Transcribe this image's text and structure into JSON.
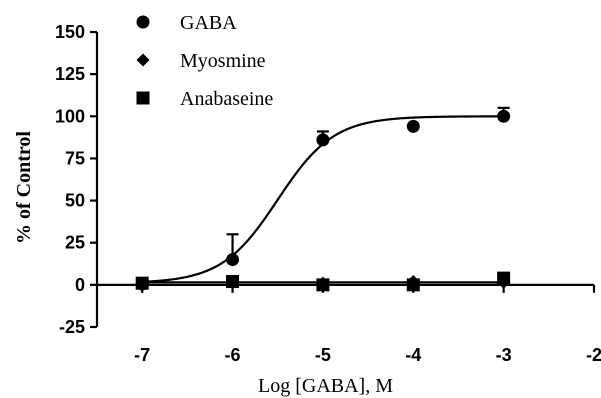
{
  "chart_data": {
    "type": "scatter",
    "xlabel": "Log [GABA], M",
    "ylabel": "% of Control",
    "xlim": [
      -7.5,
      -2
    ],
    "ylim": [
      -25,
      150
    ],
    "xticks": [
      "-7",
      "-6",
      "-5",
      "-4",
      "-3",
      "-2"
    ],
    "xtick_values": [
      -7,
      -6,
      -5,
      -4,
      -3,
      -2
    ],
    "yticks": [
      "-25",
      "0",
      "25",
      "50",
      "75",
      "100",
      "125",
      "150"
    ],
    "ytick_values": [
      -25,
      0,
      25,
      50,
      75,
      100,
      125,
      150
    ],
    "grid": false,
    "legend_position": "top-left",
    "series": [
      {
        "name": "GABA",
        "marker": "circle",
        "x": [
          -7,
          -6,
          -5,
          -4,
          -3
        ],
        "y": [
          0.5,
          15,
          86,
          94,
          100
        ],
        "error": [
          0,
          15,
          5,
          0,
          5
        ]
      },
      {
        "name": "Myosmine",
        "marker": "diamond",
        "x": [
          -7,
          -6,
          -5,
          -4,
          -3
        ],
        "y": [
          1,
          2,
          1,
          2,
          1.5
        ],
        "error": [
          0,
          0,
          0,
          0,
          0
        ]
      },
      {
        "name": "Anabaseine",
        "marker": "square",
        "x": [
          -7,
          -6,
          -5,
          -4,
          -3
        ],
        "y": [
          1,
          2,
          0,
          0,
          4
        ],
        "error": [
          0,
          3,
          0,
          0,
          0
        ]
      }
    ],
    "fit_curves": [
      {
        "series": "GABA",
        "model": "sigmoidal dose-response",
        "bottom": 1,
        "top": 100,
        "logEC50": -5.5,
        "hill": 1.4
      },
      {
        "series": "Myosmine/Anabaseine",
        "model": "flat",
        "value": 1.5
      }
    ]
  }
}
